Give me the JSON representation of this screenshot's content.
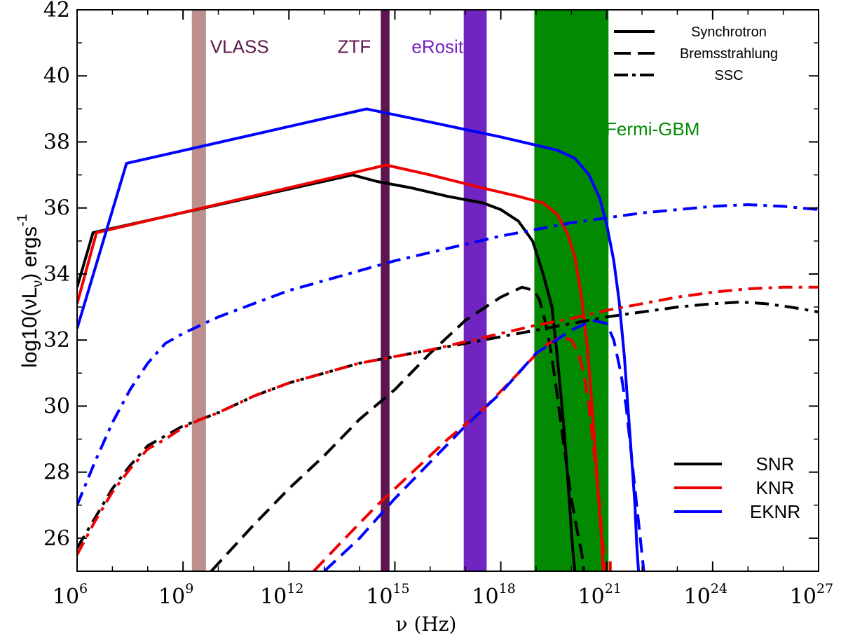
{
  "chart_data": {
    "type": "line",
    "title": "",
    "xlabel": "ν (Hz)",
    "ylabel": {
      "prefix": "log10(νL",
      "sub": "ν",
      "suffix": ")  ergs",
      "sup": "-1"
    },
    "x_scale": "log10",
    "xlim": [
      6,
      27
    ],
    "ylim": [
      25,
      42
    ],
    "x_ticks": [
      {
        "base": "10",
        "exp": "6",
        "value": 6
      },
      {
        "base": "10",
        "exp": "9",
        "value": 9
      },
      {
        "base": "10",
        "exp": "12",
        "value": 12
      },
      {
        "base": "10",
        "exp": "15",
        "value": 15
      },
      {
        "base": "10",
        "exp": "18",
        "value": 18
      },
      {
        "base": "10",
        "exp": "21",
        "value": 21
      },
      {
        "base": "10",
        "exp": "24",
        "value": 24
      },
      {
        "base": "10",
        "exp": "27",
        "value": 27
      }
    ],
    "y_ticks": [
      "26",
      "28",
      "30",
      "32",
      "34",
      "36",
      "38",
      "40",
      "42"
    ],
    "bands": [
      {
        "label": "VLASS",
        "range": [
          9.25,
          9.65
        ],
        "color": "#bc8f8f",
        "label_color": "#5b1a4b",
        "label_at": [
          10.6,
          40.7
        ]
      },
      {
        "label": "ZTF",
        "range": [
          14.6,
          14.85
        ],
        "color": "#5e1650",
        "label_color": "#5e1650",
        "label_at": [
          13.85,
          40.7
        ]
      },
      {
        "label": "eRosita",
        "range": [
          16.95,
          17.6
        ],
        "color": "#7025c0",
        "label_color": "#7025c0",
        "label_at": [
          16.35,
          40.7
        ]
      },
      {
        "label": "Fermi-GBM",
        "range": [
          18.95,
          21.05
        ],
        "color": "#028a02",
        "label_color": "#028a02",
        "label_at": [
          22.3,
          38.2
        ]
      }
    ],
    "series": [
      {
        "model": "SNR",
        "process": "Synchrotron",
        "color": "#000000",
        "dash": "solid",
        "x": [
          6,
          6.45,
          13.8,
          14.5,
          15.5,
          16.5,
          17.5,
          18,
          18.5,
          18.9,
          19.2,
          19.45,
          19.6,
          19.75,
          19.85,
          19.95,
          20.0,
          20.05,
          20.1
        ],
        "y": [
          33.6,
          35.25,
          37.0,
          36.8,
          36.6,
          36.35,
          36.15,
          35.95,
          35.6,
          35.0,
          34.0,
          33.0,
          31.5,
          29.8,
          28.5,
          27.0,
          26.2,
          25.5,
          25.0
        ]
      },
      {
        "model": "KNR",
        "process": "Synchrotron",
        "color": "#ee0000",
        "dash": "solid",
        "x": [
          6,
          6.55,
          14.75,
          16,
          17.5,
          18.5,
          19.2,
          19.6,
          19.9,
          20.1,
          20.3,
          20.45,
          20.55,
          20.65,
          20.75,
          20.85,
          20.9
        ],
        "y": [
          33.1,
          35.25,
          37.3,
          37.0,
          36.6,
          36.35,
          36.15,
          35.8,
          35.2,
          34.5,
          33.2,
          31.8,
          30.5,
          29.0,
          27.5,
          26.0,
          25.0
        ],
        "end_stub": {
          "x": [
            21.1,
            21.1
          ],
          "y": [
            25.3,
            25.0
          ]
        }
      },
      {
        "model": "EKNR",
        "process": "Synchrotron",
        "color": "#0000ff",
        "dash": "solid",
        "x": [
          6,
          7.4,
          14.2,
          16,
          18,
          19,
          19.6,
          20.1,
          20.5,
          20.8,
          21.0,
          21.2,
          21.35,
          21.5,
          21.6,
          21.7,
          21.8,
          21.85,
          21.9
        ],
        "y": [
          32.35,
          37.35,
          39.0,
          38.6,
          38.15,
          37.9,
          37.75,
          37.5,
          37.0,
          36.3,
          35.5,
          34.4,
          33.2,
          31.5,
          30.0,
          28.5,
          27.0,
          25.8,
          25.0
        ]
      },
      {
        "model": "SNR",
        "process": "Bremsstrahlung",
        "color": "#000000",
        "dash": "dashed",
        "x": [
          9.8,
          11,
          12,
          13,
          14,
          15,
          16,
          17,
          18,
          18.6,
          18.95,
          19.1,
          19.25,
          19.4,
          19.55,
          19.7,
          19.85,
          20.0,
          20.15,
          20.3,
          20.35
        ],
        "y": [
          25.0,
          26.4,
          27.5,
          28.5,
          29.6,
          30.5,
          31.6,
          32.6,
          33.3,
          33.6,
          33.5,
          33.2,
          32.6,
          31.8,
          30.7,
          29.5,
          28.3,
          27.2,
          26.3,
          25.5,
          25.0
        ]
      },
      {
        "model": "KNR",
        "process": "Bremsstrahlung",
        "color": "#ee0000",
        "dash": "dashed",
        "x": [
          12.7,
          13.5,
          14.5,
          15.5,
          16.5,
          17.5,
          18.5,
          19.2,
          19.7,
          20.0,
          20.2,
          20.35,
          20.5,
          20.6,
          20.7,
          20.8,
          20.85,
          20.9,
          20.95,
          21.0
        ],
        "y": [
          25.0,
          25.9,
          27.0,
          28.0,
          29.0,
          29.9,
          31.0,
          31.8,
          32.1,
          32.0,
          31.6,
          31.0,
          30.0,
          29.0,
          28.0,
          27.0,
          26.3,
          25.7,
          25.3,
          25.0
        ]
      },
      {
        "model": "EKNR",
        "process": "Bremsstrahlung",
        "color": "#0000ff",
        "dash": "dashed",
        "x": [
          13.0,
          14,
          15,
          16,
          17,
          18,
          19,
          20,
          20.6,
          21.0,
          21.2,
          21.4,
          21.55,
          21.65,
          21.75,
          21.85,
          21.95,
          22.05
        ],
        "y": [
          25.0,
          26.0,
          27.2,
          28.3,
          29.4,
          30.4,
          31.6,
          32.3,
          32.6,
          32.5,
          32.0,
          31.0,
          30.0,
          29.0,
          28.0,
          27.0,
          26.0,
          25.0
        ]
      },
      {
        "model": "SNR",
        "process": "SSC",
        "color": "#000000",
        "dash": "dashdot",
        "x": [
          6,
          6.5,
          7,
          7.5,
          8,
          8.5,
          9,
          9.5,
          10,
          11,
          12,
          13,
          14,
          15,
          16,
          17,
          18,
          19,
          20,
          21,
          22,
          23,
          24,
          24.8,
          25.5,
          26.2,
          27
        ],
        "y": [
          25.7,
          26.6,
          27.5,
          28.2,
          28.8,
          29.1,
          29.4,
          29.6,
          29.8,
          30.3,
          30.7,
          31.0,
          31.3,
          31.5,
          31.7,
          31.9,
          32.1,
          32.3,
          32.5,
          32.7,
          32.85,
          33.0,
          33.1,
          33.15,
          33.1,
          33.0,
          32.85
        ]
      },
      {
        "model": "KNR",
        "process": "SSC",
        "color": "#ee0000",
        "dash": "dashdot",
        "x": [
          6,
          6.5,
          7,
          7.5,
          8,
          8.5,
          9,
          9.5,
          10,
          11,
          12,
          13,
          14,
          15,
          16,
          17,
          18,
          19,
          20,
          21,
          22,
          23,
          24,
          25,
          26,
          27
        ],
        "y": [
          25.5,
          26.5,
          27.4,
          28.1,
          28.7,
          29.0,
          29.35,
          29.6,
          29.8,
          30.3,
          30.7,
          31.0,
          31.3,
          31.5,
          31.7,
          31.95,
          32.2,
          32.45,
          32.65,
          32.9,
          33.1,
          33.3,
          33.45,
          33.55,
          33.6,
          33.6
        ]
      },
      {
        "model": "EKNR",
        "process": "SSC",
        "color": "#0000ff",
        "dash": "dashdot",
        "x": [
          6,
          6.5,
          7,
          7.5,
          8,
          8.5,
          9,
          9.5,
          10,
          11,
          12,
          13,
          14,
          15,
          16,
          17,
          18,
          19,
          20,
          21,
          22,
          23,
          24,
          25,
          26,
          27
        ],
        "y": [
          27.0,
          28.3,
          29.5,
          30.5,
          31.3,
          31.9,
          32.2,
          32.45,
          32.7,
          33.1,
          33.5,
          33.8,
          34.1,
          34.4,
          34.65,
          34.9,
          35.15,
          35.35,
          35.55,
          35.7,
          35.85,
          35.95,
          36.05,
          36.1,
          36.05,
          35.95
        ]
      }
    ],
    "legend_process": {
      "placement": "top-right",
      "entries": [
        {
          "label": "Synchrotron",
          "dash": "solid"
        },
        {
          "label": "Bremsstrahlung",
          "dash": "dashed"
        },
        {
          "label": "SSC",
          "dash": "dashdot"
        }
      ]
    },
    "legend_model": {
      "placement": "bottom-right",
      "entries": [
        {
          "label": "SNR",
          "color": "#000000"
        },
        {
          "label": "KNR",
          "color": "#ee0000"
        },
        {
          "label": "EKNR",
          "color": "#0000ff"
        }
      ]
    }
  }
}
